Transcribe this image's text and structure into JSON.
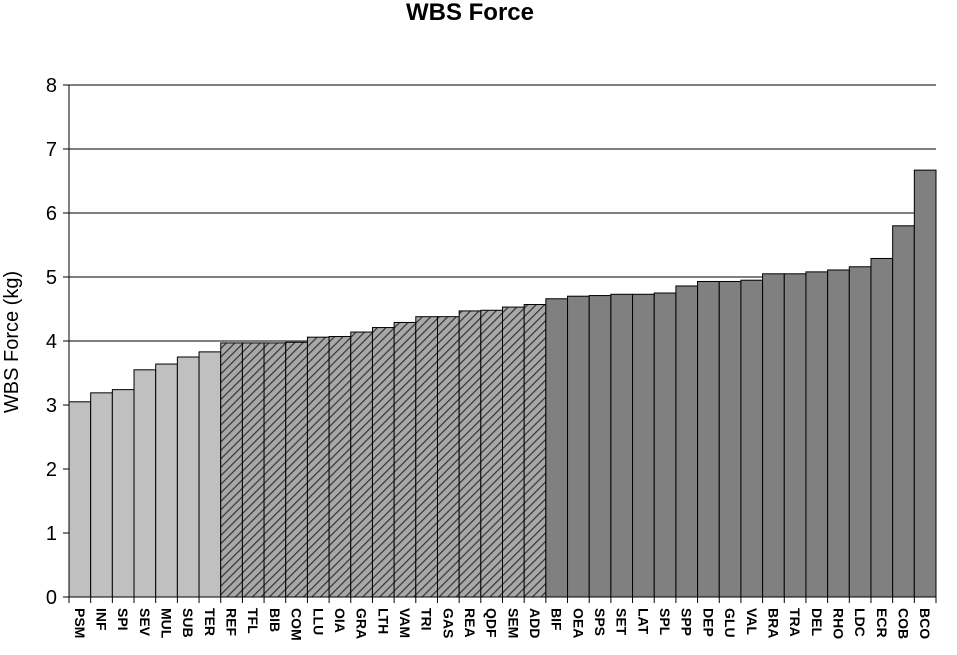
{
  "chart_data": {
    "type": "bar",
    "title": "WBS Force",
    "ylabel": "WBS Force (kg)",
    "xlabel": "",
    "ylim": [
      0,
      8
    ],
    "yticks": [
      0,
      1,
      2,
      3,
      4,
      5,
      6,
      7,
      8
    ],
    "grid": true,
    "legend": "none",
    "categories": [
      "PSM",
      "INF",
      "SPI",
      "SEV",
      "MUL",
      "SUB",
      "TER",
      "REF",
      "TFL",
      "BIB",
      "COM",
      "LLU",
      "OIA",
      "GRA",
      "LTH",
      "VAM",
      "TRI",
      "GAS",
      "REA",
      "QDF",
      "SEM",
      "ADD",
      "BIF",
      "OEA",
      "SPS",
      "SET",
      "LAT",
      "SPL",
      "SPP",
      "DEP",
      "GLU",
      "VAL",
      "BRA",
      "TRA",
      "DEL",
      "RHO",
      "LDC",
      "ECR",
      "COB",
      "BCO"
    ],
    "values": [
      3.05,
      3.19,
      3.24,
      3.55,
      3.64,
      3.75,
      3.83,
      3.97,
      3.97,
      3.97,
      3.98,
      4.06,
      4.07,
      4.14,
      4.21,
      4.29,
      4.38,
      4.38,
      4.47,
      4.48,
      4.53,
      4.57,
      4.66,
      4.7,
      4.71,
      4.73,
      4.73,
      4.75,
      4.86,
      4.93,
      4.93,
      4.95,
      5.05,
      5.05,
      5.08,
      5.11,
      5.16,
      5.29,
      5.8,
      6.67
    ],
    "groups": [
      {
        "from": 0,
        "to": 6,
        "fill": "#c0c0c0",
        "pattern": "solid"
      },
      {
        "from": 7,
        "to": 21,
        "fill": "#9a9a9a",
        "pattern": "diagonal-hatch"
      },
      {
        "from": 22,
        "to": 39,
        "fill": "#808080",
        "pattern": "solid"
      }
    ],
    "colors": {
      "axis": "#000000",
      "grid": "#000000",
      "bar_edge": "#000000",
      "hatch_line": "#333333"
    }
  }
}
